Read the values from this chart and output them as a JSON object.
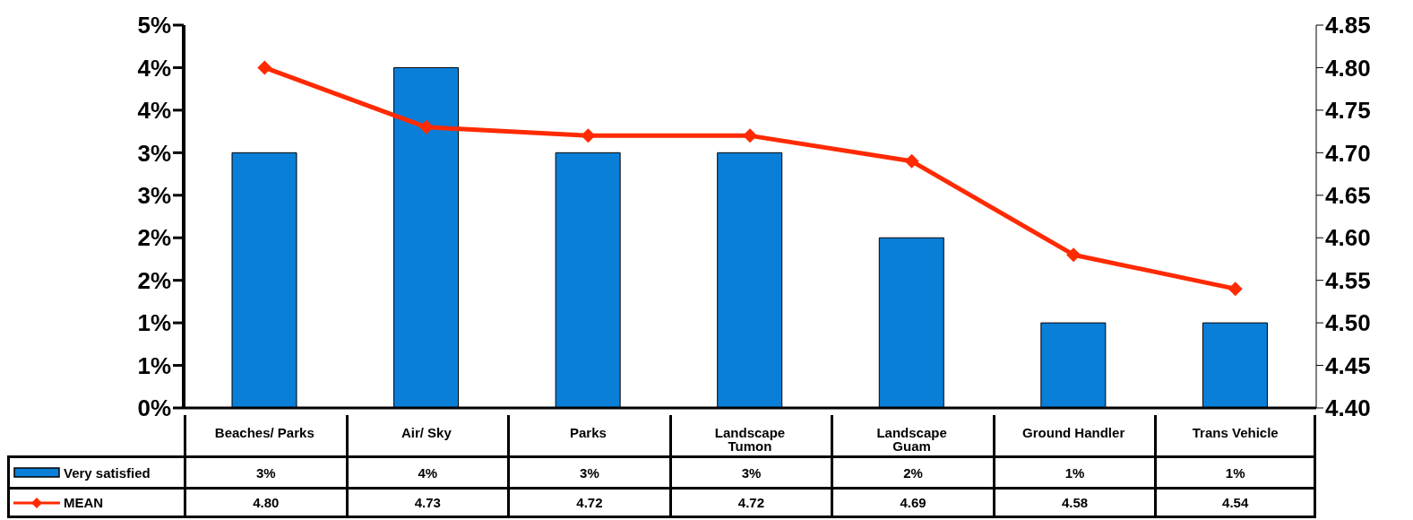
{
  "chart_data": {
    "type": "bar",
    "categories": [
      "Beaches/ Parks",
      "Air/ Sky",
      "Parks",
      "Landscape Tumon",
      "Landscape Guam",
      "Ground Handler",
      "Trans Vehicle"
    ],
    "series": [
      {
        "name": "Very satisfied",
        "color": "#0a7fd8",
        "values": [
          3,
          4,
          3,
          3,
          2,
          1,
          1
        ],
        "value_labels": [
          "3%",
          "4%",
          "3%",
          "3%",
          "2%",
          "1%",
          "1%"
        ]
      },
      {
        "name": "MEAN",
        "type": "line",
        "axis": "y2",
        "color": "#ff2a00",
        "marker": "diamond",
        "values": [
          4.8,
          4.73,
          4.72,
          4.72,
          4.69,
          4.58,
          4.54
        ],
        "value_labels": [
          "4.80",
          "4.73",
          "4.72",
          "4.72",
          "4.69",
          "4.58",
          "4.54"
        ]
      }
    ],
    "ylim": [
      0,
      4.5
    ],
    "yticks": [
      {
        "value": 0,
        "label": "0%"
      },
      {
        "value": 0.5,
        "label": "1%"
      },
      {
        "value": 1,
        "label": "1%"
      },
      {
        "value": 1.5,
        "label": "2%"
      },
      {
        "value": 2,
        "label": "2%"
      },
      {
        "value": 2.5,
        "label": "3%"
      },
      {
        "value": 3,
        "label": "3%"
      },
      {
        "value": 3.5,
        "label": "4%"
      },
      {
        "value": 4,
        "label": "4%"
      },
      {
        "value": 4.5,
        "label": "5%"
      }
    ],
    "y2lim": [
      4.4,
      4.85
    ],
    "y2ticks": [
      {
        "value": 4.4,
        "label": "4.40"
      },
      {
        "value": 4.45,
        "label": "4.45"
      },
      {
        "value": 4.5,
        "label": "4.50"
      },
      {
        "value": 4.55,
        "label": "4.55"
      },
      {
        "value": 4.6,
        "label": "4.60"
      },
      {
        "value": 4.65,
        "label": "4.65"
      },
      {
        "value": 4.7,
        "label": "4.70"
      },
      {
        "value": 4.75,
        "label": "4.75"
      },
      {
        "value": 4.8,
        "label": "4.80"
      },
      {
        "value": 4.85,
        "label": "4.85"
      }
    ],
    "grid": false,
    "legend": "bottom"
  }
}
